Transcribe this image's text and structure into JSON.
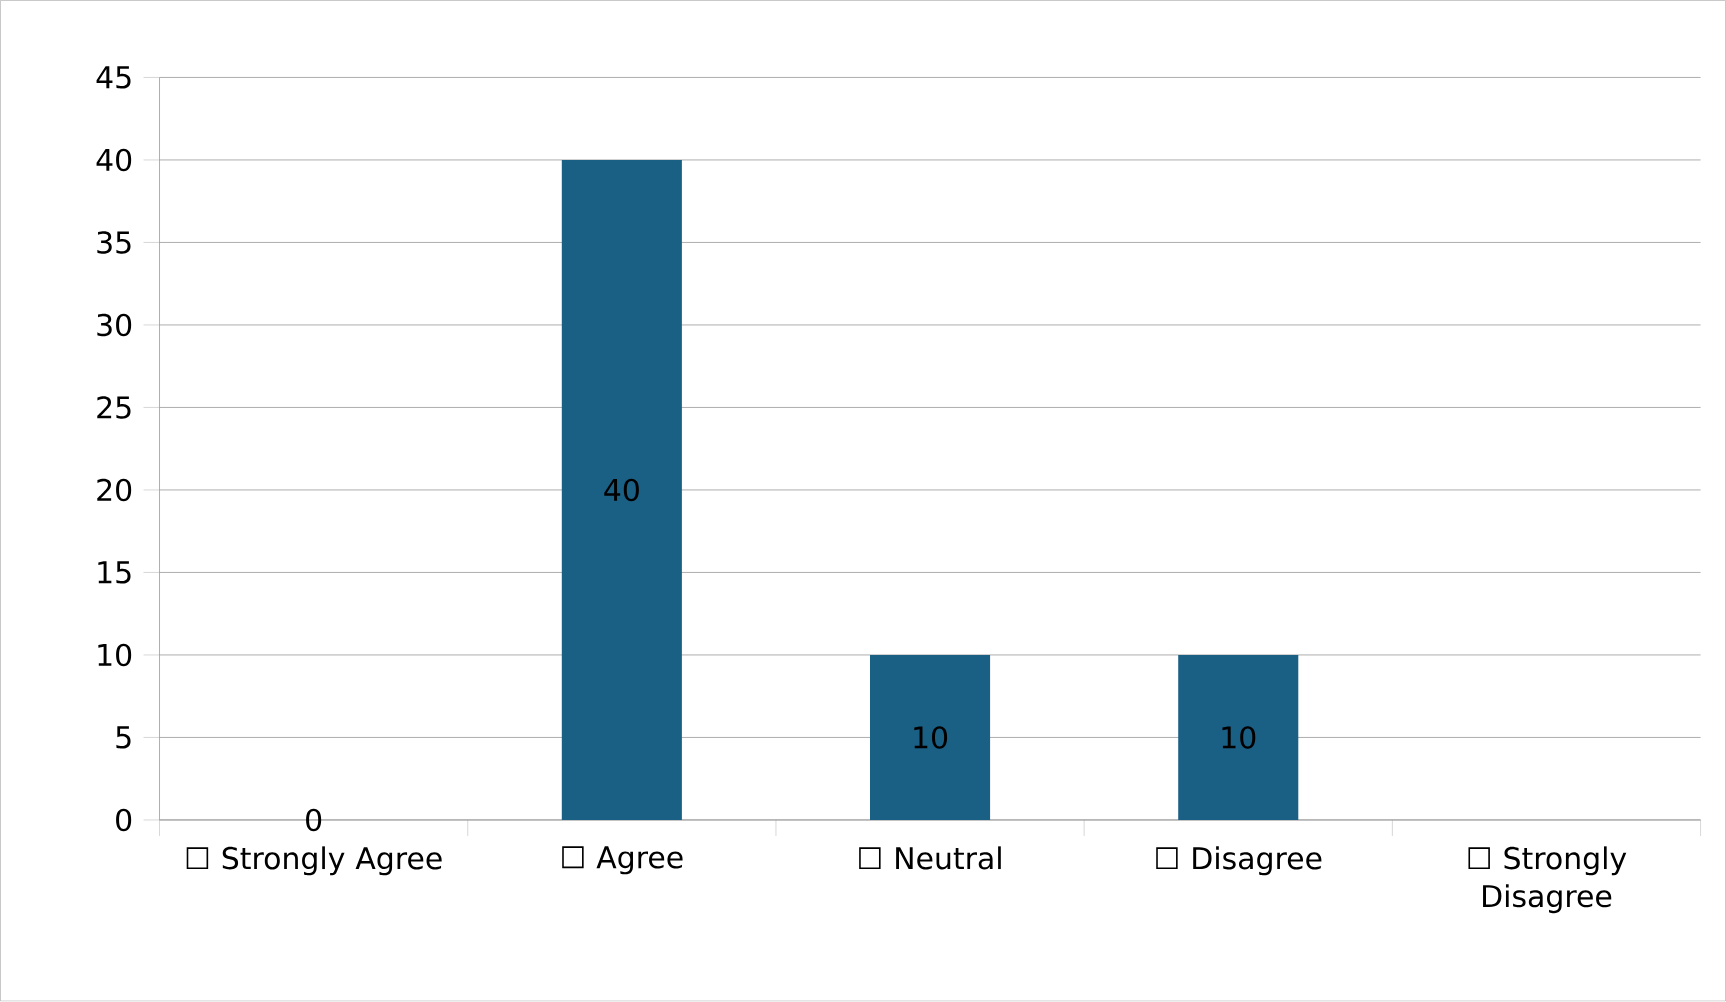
{
  "chart_data": {
    "type": "bar",
    "categories": [
      "☐ Strongly Agree",
      "☐ Agree",
      "☐ Neutral",
      "☐ Disagree",
      "☐ Strongly Disagree"
    ],
    "values": [
      0,
      40,
      10,
      10,
      0
    ],
    "value_labels": [
      "0",
      "40",
      "10",
      "10",
      null
    ],
    "color": "#1a5f84",
    "ylim": [
      0,
      45
    ],
    "yticks": [
      0,
      5,
      10,
      15,
      20,
      25,
      30,
      35,
      40,
      45
    ],
    "grid": "y"
  }
}
